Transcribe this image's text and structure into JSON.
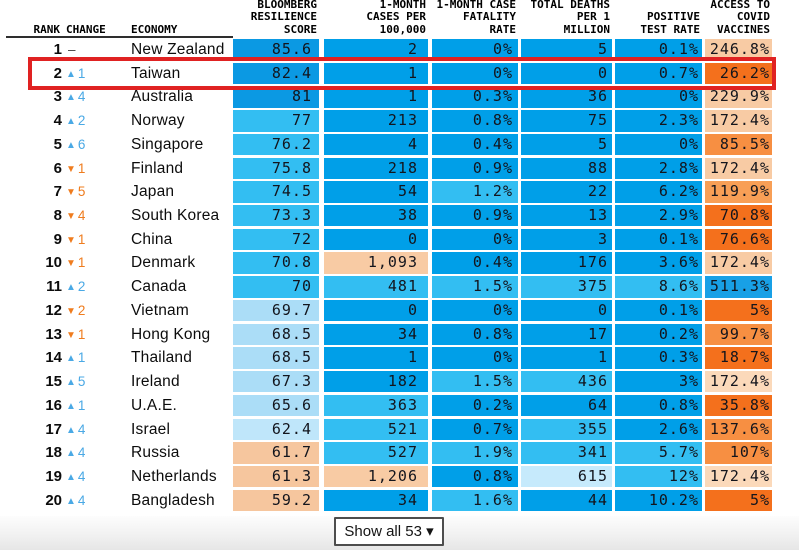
{
  "palette": {
    "b1": "#009fe8",
    "b2": "#33bef2",
    "b3": "#c6eafc",
    "s1": "#0b99e3",
    "pb": "#abddf7",
    "pb2": "#bfe6fa",
    "pc": "#f6c69e",
    "p1": "#f8cba4",
    "p2": "#fbd9ba",
    "o1": "#f4701c",
    "o2": "#f78f42",
    "o3": "#f89f56",
    "vb": "#18a0e6",
    "up": "#4aa9e5",
    "down": "#ef7c1e",
    "dash": "#444444",
    "highlight": "#e02222"
  },
  "glyphs": {
    "up": "▲",
    "down": "▼"
  },
  "header": {
    "rank": "RANK",
    "change": "CHANGE",
    "economy": "ECONOMY",
    "cols": [
      {
        "key": "score",
        "lines": [
          "BLOOMBERG",
          "RESILIENCE",
          "SCORE"
        ]
      },
      {
        "key": "cases",
        "lines": [
          "1-MONTH",
          "CASES PER",
          "100,000"
        ]
      },
      {
        "key": "fatality",
        "lines": [
          "1-MONTH CASE",
          "FATALITY",
          "RATE"
        ]
      },
      {
        "key": "deaths",
        "lines": [
          "TOTAL DEATHS",
          "PER 1",
          "MILLION"
        ]
      },
      {
        "key": "test",
        "lines": [
          "POSITIVE",
          "TEST RATE"
        ]
      },
      {
        "key": "vaccines",
        "lines": [
          "ACCESS TO",
          "COVID",
          "VACCINES"
        ]
      }
    ]
  },
  "rows": [
    {
      "rank": "1",
      "dir": "none",
      "change": "–",
      "economy": "New Zealand",
      "highlight": false,
      "cells": [
        [
          "85.6",
          "s1"
        ],
        [
          "2",
          "b1"
        ],
        [
          "0%",
          "b1"
        ],
        [
          "5",
          "b1"
        ],
        [
          "0.1%",
          "b1"
        ],
        [
          "246.8%",
          "p1"
        ]
      ]
    },
    {
      "rank": "2",
      "dir": "up",
      "change": "1",
      "economy": "Taiwan",
      "highlight": true,
      "cells": [
        [
          "82.4",
          "s1"
        ],
        [
          "1",
          "b1"
        ],
        [
          "0%",
          "b1"
        ],
        [
          "0",
          "b1"
        ],
        [
          "0.7%",
          "b1"
        ],
        [
          "26.2%",
          "o1"
        ]
      ]
    },
    {
      "rank": "3",
      "dir": "up",
      "change": "4",
      "economy": "Australia",
      "highlight": false,
      "cells": [
        [
          "81",
          "s1"
        ],
        [
          "1",
          "b1"
        ],
        [
          "0.3%",
          "b1"
        ],
        [
          "36",
          "b1"
        ],
        [
          "0%",
          "b1"
        ],
        [
          "229.9%",
          "p1"
        ]
      ]
    },
    {
      "rank": "4",
      "dir": "up",
      "change": "2",
      "economy": "Norway",
      "highlight": false,
      "cells": [
        [
          "77",
          "b2"
        ],
        [
          "213",
          "b1"
        ],
        [
          "0.8%",
          "b1"
        ],
        [
          "75",
          "b1"
        ],
        [
          "2.3%",
          "b1"
        ],
        [
          "172.4%",
          "p1"
        ]
      ]
    },
    {
      "rank": "5",
      "dir": "up",
      "change": "6",
      "economy": "Singapore",
      "highlight": false,
      "cells": [
        [
          "76.2",
          "b2"
        ],
        [
          "4",
          "b1"
        ],
        [
          "0.4%",
          "b1"
        ],
        [
          "5",
          "b1"
        ],
        [
          "0%",
          "b1"
        ],
        [
          "85.5%",
          "o2"
        ]
      ]
    },
    {
      "rank": "6",
      "dir": "down",
      "change": "1",
      "economy": "Finland",
      "highlight": false,
      "cells": [
        [
          "75.8",
          "b2"
        ],
        [
          "218",
          "b1"
        ],
        [
          "0.9%",
          "b1"
        ],
        [
          "88",
          "b1"
        ],
        [
          "2.8%",
          "b1"
        ],
        [
          "172.4%",
          "p1"
        ]
      ]
    },
    {
      "rank": "7",
      "dir": "down",
      "change": "5",
      "economy": "Japan",
      "highlight": false,
      "cells": [
        [
          "74.5",
          "b2"
        ],
        [
          "54",
          "b1"
        ],
        [
          "1.2%",
          "b2"
        ],
        [
          "22",
          "b1"
        ],
        [
          "6.2%",
          "b1"
        ],
        [
          "119.9%",
          "o3"
        ]
      ]
    },
    {
      "rank": "8",
      "dir": "down",
      "change": "4",
      "economy": "South Korea",
      "highlight": false,
      "cells": [
        [
          "73.3",
          "b2"
        ],
        [
          "38",
          "b1"
        ],
        [
          "0.9%",
          "b1"
        ],
        [
          "13",
          "b1"
        ],
        [
          "2.9%",
          "b1"
        ],
        [
          "70.8%",
          "o1"
        ]
      ]
    },
    {
      "rank": "9",
      "dir": "down",
      "change": "1",
      "economy": "China",
      "highlight": false,
      "cells": [
        [
          "72",
          "b2"
        ],
        [
          "0",
          "b1"
        ],
        [
          "0%",
          "b1"
        ],
        [
          "3",
          "b1"
        ],
        [
          "0.1%",
          "b1"
        ],
        [
          "76.6%",
          "o1"
        ]
      ]
    },
    {
      "rank": "10",
      "dir": "down",
      "change": "1",
      "economy": "Denmark",
      "highlight": false,
      "cells": [
        [
          "70.8",
          "b2"
        ],
        [
          "1,093",
          "p1"
        ],
        [
          "0.4%",
          "b1"
        ],
        [
          "176",
          "b1"
        ],
        [
          "3.6%",
          "b1"
        ],
        [
          "172.4%",
          "p1"
        ]
      ]
    },
    {
      "rank": "11",
      "dir": "up",
      "change": "2",
      "economy": "Canada",
      "highlight": false,
      "cells": [
        [
          "70",
          "b2"
        ],
        [
          "481",
          "b2"
        ],
        [
          "1.5%",
          "b2"
        ],
        [
          "375",
          "b2"
        ],
        [
          "8.6%",
          "b2"
        ],
        [
          "511.3%",
          "vb"
        ]
      ]
    },
    {
      "rank": "12",
      "dir": "down",
      "change": "2",
      "economy": "Vietnam",
      "highlight": false,
      "cells": [
        [
          "69.7",
          "pb"
        ],
        [
          "0",
          "b1"
        ],
        [
          "0%",
          "b1"
        ],
        [
          "0",
          "b1"
        ],
        [
          "0.1%",
          "b1"
        ],
        [
          "5%",
          "o1"
        ]
      ]
    },
    {
      "rank": "13",
      "dir": "down",
      "change": "1",
      "economy": "Hong Kong",
      "highlight": false,
      "cells": [
        [
          "68.5",
          "pb"
        ],
        [
          "34",
          "b1"
        ],
        [
          "0.8%",
          "b1"
        ],
        [
          "17",
          "b1"
        ],
        [
          "0.2%",
          "b1"
        ],
        [
          "99.7%",
          "o2"
        ]
      ]
    },
    {
      "rank": "14",
      "dir": "up",
      "change": "1",
      "economy": "Thailand",
      "highlight": false,
      "cells": [
        [
          "68.5",
          "pb"
        ],
        [
          "1",
          "b1"
        ],
        [
          "0%",
          "b1"
        ],
        [
          "1",
          "b1"
        ],
        [
          "0.3%",
          "b1"
        ],
        [
          "18.7%",
          "o1"
        ]
      ]
    },
    {
      "rank": "15",
      "dir": "up",
      "change": "5",
      "economy": "Ireland",
      "highlight": false,
      "cells": [
        [
          "67.3",
          "pb"
        ],
        [
          "182",
          "b1"
        ],
        [
          "1.5%",
          "b2"
        ],
        [
          "436",
          "b2"
        ],
        [
          "3%",
          "b1"
        ],
        [
          "172.4%",
          "p2"
        ]
      ]
    },
    {
      "rank": "16",
      "dir": "up",
      "change": "1",
      "economy": "U.A.E.",
      "highlight": false,
      "cells": [
        [
          "65.6",
          "pb"
        ],
        [
          "363",
          "b2"
        ],
        [
          "0.2%",
          "b1"
        ],
        [
          "64",
          "b1"
        ],
        [
          "0.8%",
          "b1"
        ],
        [
          "35.8%",
          "o1"
        ]
      ]
    },
    {
      "rank": "17",
      "dir": "up",
      "change": "4",
      "economy": "Israel",
      "highlight": false,
      "cells": [
        [
          "62.4",
          "pb2"
        ],
        [
          "521",
          "b2"
        ],
        [
          "0.7%",
          "b1"
        ],
        [
          "355",
          "b2"
        ],
        [
          "2.6%",
          "b1"
        ],
        [
          "137.6%",
          "o2"
        ]
      ]
    },
    {
      "rank": "18",
      "dir": "up",
      "change": "4",
      "economy": "Russia",
      "highlight": false,
      "cells": [
        [
          "61.7",
          "pc"
        ],
        [
          "527",
          "b2"
        ],
        [
          "1.9%",
          "b2"
        ],
        [
          "341",
          "b2"
        ],
        [
          "5.7%",
          "b2"
        ],
        [
          "107%",
          "o2"
        ]
      ]
    },
    {
      "rank": "19",
      "dir": "up",
      "change": "4",
      "economy": "Netherlands",
      "highlight": false,
      "cells": [
        [
          "61.3",
          "pc"
        ],
        [
          "1,206",
          "p1"
        ],
        [
          "0.8%",
          "b1"
        ],
        [
          "615",
          "b3"
        ],
        [
          "12%",
          "b2"
        ],
        [
          "172.4%",
          "p2"
        ]
      ]
    },
    {
      "rank": "20",
      "dir": "up",
      "change": "4",
      "economy": "Bangladesh",
      "highlight": false,
      "cells": [
        [
          "59.2",
          "pc"
        ],
        [
          "34",
          "b1"
        ],
        [
          "1.6%",
          "b2"
        ],
        [
          "44",
          "b1"
        ],
        [
          "10.2%",
          "b1"
        ],
        [
          "5%",
          "o1"
        ]
      ]
    }
  ],
  "footer": {
    "show_all_label": "Show all 53 ▾"
  }
}
